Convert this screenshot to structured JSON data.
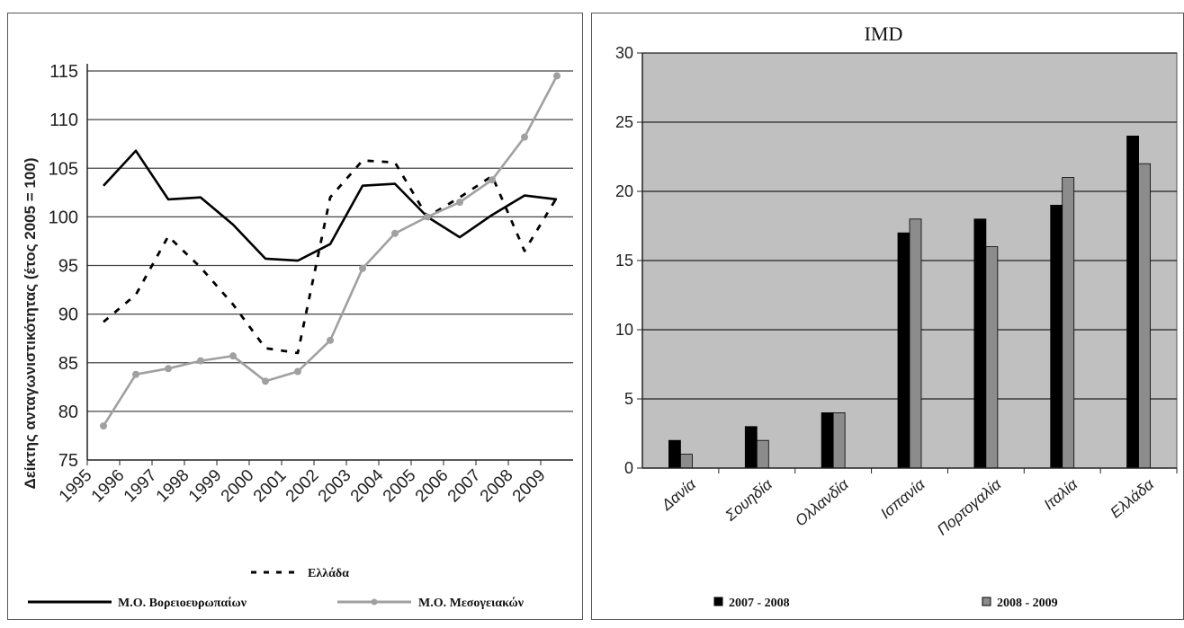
{
  "chart_data": [
    {
      "type": "line",
      "ylabel": "Δείκτης ανταγωνιστικότητας (έτος 2005 = 100)",
      "ylim": [
        75,
        115
      ],
      "yticks": [
        75,
        80,
        85,
        90,
        95,
        100,
        105,
        110,
        115
      ],
      "x": [
        "1995",
        "1996",
        "1997",
        "1998",
        "1999",
        "2000",
        "2001",
        "2002",
        "2003",
        "2004",
        "2005",
        "2006",
        "2007",
        "2008",
        "2009"
      ],
      "grid": true,
      "legend_position": "bottom",
      "series": [
        {
          "name": "Μ.Ο. Βορειοευρωπαίων",
          "style": "solid",
          "color": "#000000",
          "values": [
            103.2,
            106.8,
            101.8,
            102.0,
            99.2,
            95.7,
            95.5,
            97.2,
            103.2,
            103.4,
            100.0,
            97.9,
            100.2,
            102.2,
            101.8
          ]
        },
        {
          "name": "Ελλάδα",
          "style": "dashed",
          "color": "#000000",
          "values": [
            89.2,
            92.0,
            98.0,
            94.8,
            91.0,
            86.5,
            86.0,
            102.0,
            105.8,
            105.6,
            100.0,
            102.0,
            104.2,
            96.5,
            102.0
          ]
        },
        {
          "name": "Μ.Ο. Μεσογειακών",
          "style": "solid",
          "color": "#a0a0a0",
          "values": [
            78.5,
            83.8,
            84.4,
            85.2,
            85.7,
            83.1,
            84.1,
            87.3,
            94.7,
            98.3,
            100.0,
            101.5,
            103.8,
            108.2,
            114.5
          ]
        }
      ],
      "legend": {
        "greece": "Ελλάδα",
        "north": "Μ.Ο. Βορειοευρωπαίων",
        "med": "Μ.Ο. Μεσογειακών"
      }
    },
    {
      "type": "bar",
      "title": "IMD",
      "categories": [
        "Δανία",
        "Σουηδία",
        "Ολλανδία",
        "Ισπανία",
        "Πορτογαλία",
        "Ιταλία",
        "Ελλάδα"
      ],
      "ylim": [
        0,
        30
      ],
      "yticks": [
        0,
        5,
        10,
        15,
        20,
        25,
        30
      ],
      "grid": true,
      "legend_position": "bottom",
      "plot_background": "#c0c0c0",
      "series": [
        {
          "name": "2007 - 2008",
          "color": "#000000",
          "values": [
            2,
            3,
            4,
            17,
            18,
            19,
            24
          ]
        },
        {
          "name": "2008 - 2009",
          "color": "#8c8c8c",
          "values": [
            1,
            2,
            4,
            18,
            16,
            21,
            22
          ]
        }
      ]
    }
  ]
}
